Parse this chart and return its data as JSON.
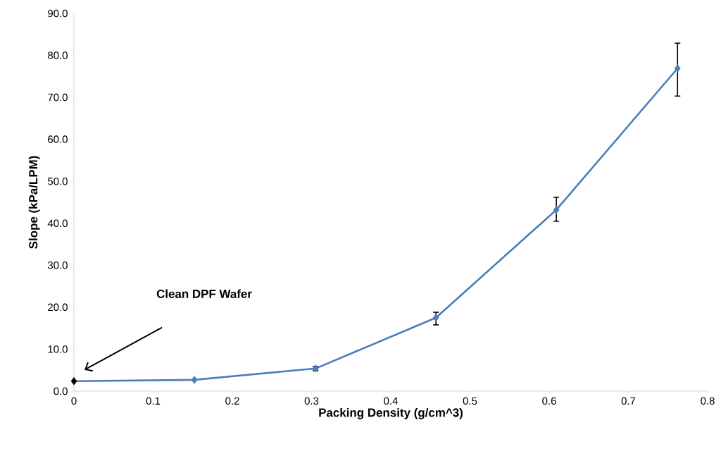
{
  "chart_data": {
    "type": "line",
    "xlabel": "Packing Density (g/cm^3)",
    "ylabel": "Slope (kPa/LPM)",
    "x": [
      0,
      0.152,
      0.305,
      0.457,
      0.609,
      0.762
    ],
    "series": [
      {
        "color": "#4a7ebb",
        "colors": [
          "#000000",
          "#4a7ebb",
          "#4a7ebb",
          "#4a7ebb",
          "#4a7ebb",
          "#4a7ebb"
        ],
        "values": [
          2.4,
          2.7,
          5.4,
          17.5,
          43.2,
          76.9
        ],
        "errors": [
          null,
          null,
          0.5,
          [
            15.8,
            18.8
          ],
          [
            40.5,
            46.2
          ],
          [
            70.3,
            82.9
          ]
        ]
      }
    ],
    "annotations": [
      "Clean DPF Wafer"
    ],
    "marker": "diamond",
    "line_style": "solid",
    "grid": false,
    "xlim": [
      0,
      0.8
    ],
    "xticks": [
      0,
      0.1,
      0.2,
      0.3,
      0.4,
      0.5,
      0.6,
      0.7,
      0.8
    ],
    "ylim": [
      0,
      90
    ],
    "yticks": [
      {
        "value": 0,
        "label": "0.0"
      },
      {
        "value": 10,
        "label": "10.0"
      },
      {
        "value": 20,
        "label": "20.0"
      },
      {
        "value": 30,
        "label": "30.0"
      },
      {
        "value": 40,
        "label": "40.0"
      },
      {
        "value": 50,
        "label": "50.0"
      },
      {
        "value": 60,
        "label": "60.0"
      },
      {
        "value": 70,
        "label": "70.0"
      },
      {
        "value": 80,
        "label": "80.0"
      },
      {
        "value": 90,
        "label": "90.0"
      }
    ]
  }
}
